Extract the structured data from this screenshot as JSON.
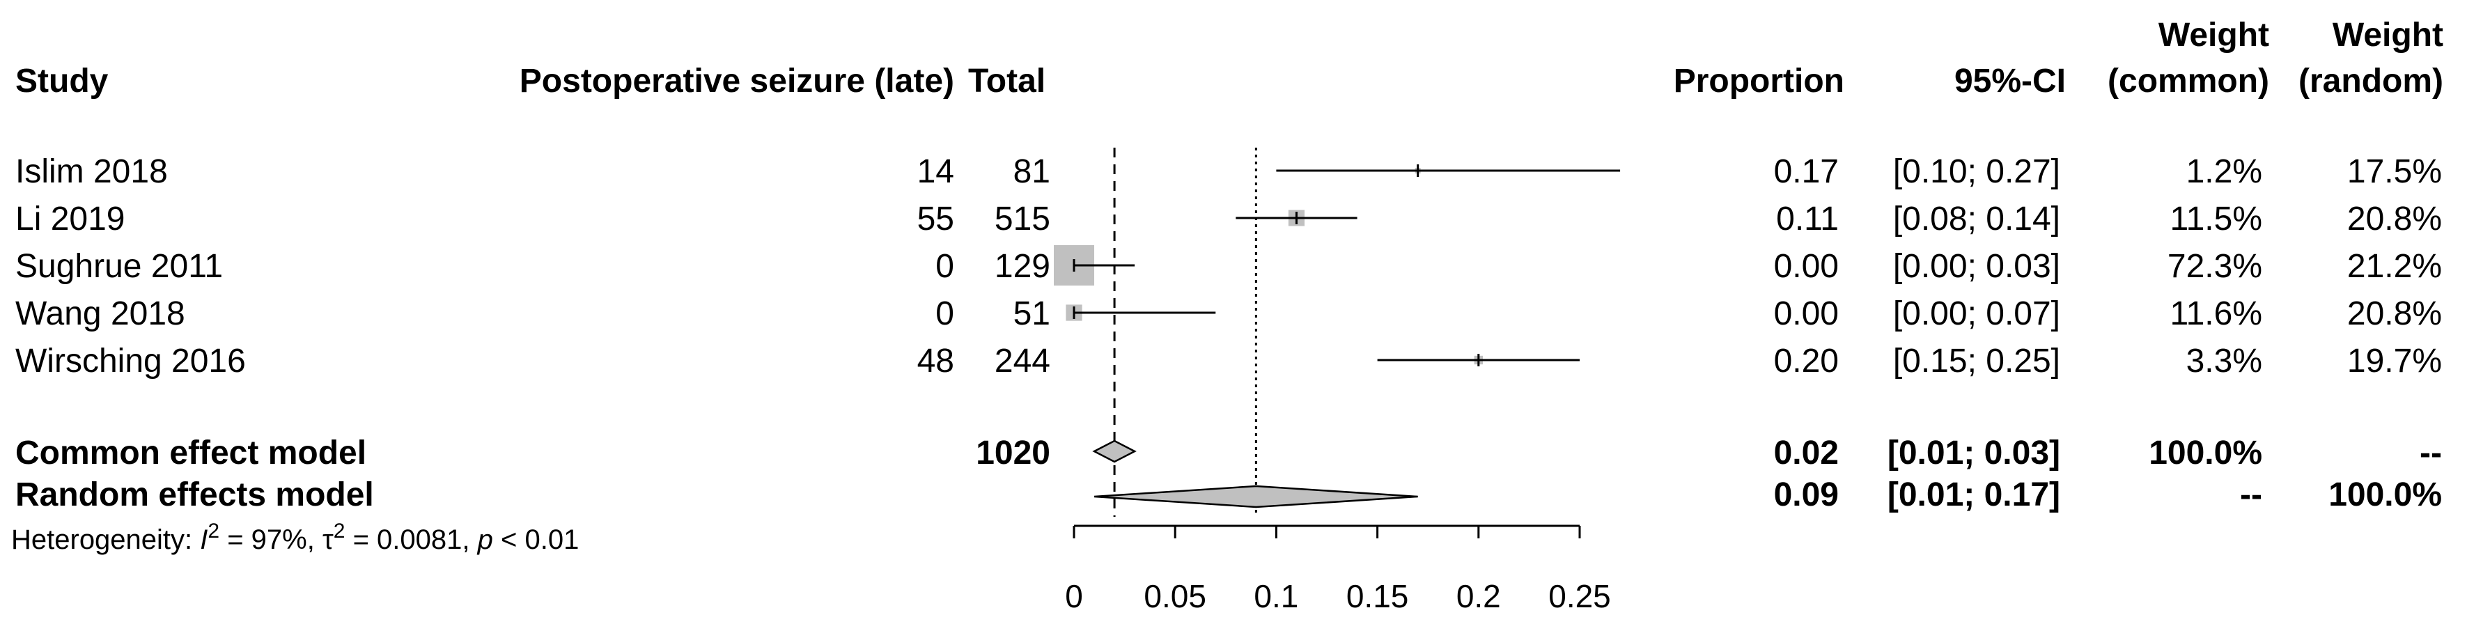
{
  "headers": {
    "study": "Study",
    "events": "Postoperative seizure (late)",
    "total": "Total",
    "proportion": "Proportion",
    "ci": "95%-CI",
    "weight_common": [
      "Weight",
      "(common)"
    ],
    "weight_random": [
      "Weight",
      "(random)"
    ]
  },
  "studies": [
    {
      "study": "Islim 2018",
      "events": "14",
      "total": "81",
      "proportion": "0.17",
      "ci": "[0.10; 0.27]",
      "weight_common": "1.2%",
      "weight_random": "17.5%"
    },
    {
      "study": "Li 2019",
      "events": "55",
      "total": "515",
      "proportion": "0.11",
      "ci": "[0.08; 0.14]",
      "weight_common": "11.5%",
      "weight_random": "20.8%"
    },
    {
      "study": "Sughrue 2011",
      "events": "0",
      "total": "129",
      "proportion": "0.00",
      "ci": "[0.00; 0.03]",
      "weight_common": "72.3%",
      "weight_random": "21.2%"
    },
    {
      "study": "Wang 2018",
      "events": "0",
      "total": "51",
      "proportion": "0.00",
      "ci": "[0.00; 0.07]",
      "weight_common": "11.6%",
      "weight_random": "20.8%"
    },
    {
      "study": "Wirsching 2016",
      "events": "48",
      "total": "244",
      "proportion": "0.20",
      "ci": "[0.15; 0.25]",
      "weight_common": "3.3%",
      "weight_random": "19.7%"
    }
  ],
  "summaries": [
    {
      "label": "Common effect model",
      "total": "1020",
      "proportion": "0.02",
      "ci": "[0.01; 0.03]",
      "weight_common": "100.0%",
      "weight_random": "--"
    },
    {
      "label": "Random effects model",
      "total": "",
      "proportion": "0.09",
      "ci": "[0.01; 0.17]",
      "weight_common": "--",
      "weight_random": "100.0%"
    }
  ],
  "heterogeneity": {
    "prefix": "Heterogeneity: ",
    "i2_symbol": "I",
    "i2_sup": "2",
    "i2_value": " = 97%, ",
    "tau2_symbol": "τ",
    "tau2_sup": "2",
    "tau2_value": " = 0.0081, ",
    "p_symbol": "p",
    "p_value": " < 0.01"
  },
  "chart_data": {
    "type": "forest",
    "measure": "Proportion",
    "xlim": [
      0,
      0.25
    ],
    "x_ticks": [
      0,
      0.05,
      0.1,
      0.15,
      0.2,
      0.25
    ],
    "x_tick_labels": [
      "0",
      "0.05",
      "0.1",
      "0.15",
      "0.2",
      "0.25"
    ],
    "studies": [
      {
        "name": "Islim 2018",
        "estimate": 0.17,
        "ci_low": 0.1,
        "ci_high": 0.27,
        "weight_common": 1.2
      },
      {
        "name": "Li 2019",
        "estimate": 0.11,
        "ci_low": 0.08,
        "ci_high": 0.14,
        "weight_common": 11.5
      },
      {
        "name": "Sughrue 2011",
        "estimate": 0.0,
        "ci_low": 0.0,
        "ci_high": 0.03,
        "weight_common": 72.3
      },
      {
        "name": "Wang 2018",
        "estimate": 0.0,
        "ci_low": 0.0,
        "ci_high": 0.07,
        "weight_common": 11.6
      },
      {
        "name": "Wirsching 2016",
        "estimate": 0.2,
        "ci_low": 0.15,
        "ci_high": 0.25,
        "weight_common": 3.3
      }
    ],
    "common_effect": {
      "estimate": 0.02,
      "ci_low": 0.01,
      "ci_high": 0.03
    },
    "random_effects": {
      "estimate": 0.09,
      "ci_low": 0.01,
      "ci_high": 0.17
    },
    "colors": {
      "square": "#c0c0c0",
      "diamond": "#c0c0c0",
      "line": "#000000"
    }
  }
}
